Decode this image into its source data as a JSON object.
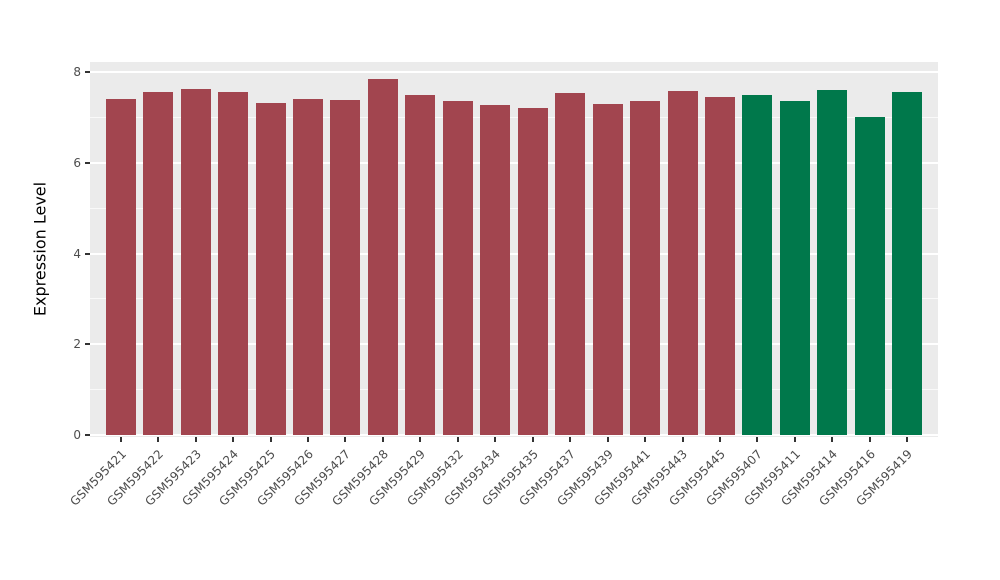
{
  "chart_data": {
    "type": "bar",
    "title": "",
    "xlabel": "",
    "ylabel": "Expression Level",
    "ylim": [
      0,
      8
    ],
    "yticks": [
      0,
      2,
      4,
      6,
      8
    ],
    "yticks_minor": [
      1,
      3,
      5,
      7
    ],
    "grid": true,
    "legend": false,
    "categories": [
      "GSM595421",
      "GSM595422",
      "GSM595423",
      "GSM595424",
      "GSM595425",
      "GSM595426",
      "GSM595427",
      "GSM595428",
      "GSM595429",
      "GSM595432",
      "GSM595434",
      "GSM595435",
      "GSM595437",
      "GSM595439",
      "GSM595441",
      "GSM595443",
      "GSM595445",
      "GSM595407",
      "GSM595411",
      "GSM595414",
      "GSM595416",
      "GSM595419"
    ],
    "values": [
      7.4,
      7.55,
      7.62,
      7.57,
      7.32,
      7.4,
      7.38,
      7.85,
      7.5,
      7.35,
      7.28,
      7.2,
      7.53,
      7.3,
      7.35,
      7.58,
      7.45,
      7.5,
      7.35,
      7.6,
      7.0,
      7.57
    ],
    "bar_colors": [
      "#A2454F",
      "#A2454F",
      "#A2454F",
      "#A2454F",
      "#A2454F",
      "#A2454F",
      "#A2454F",
      "#A2454F",
      "#A2454F",
      "#A2454F",
      "#A2454F",
      "#A2454F",
      "#A2454F",
      "#A2454F",
      "#A2454F",
      "#A2454F",
      "#A2454F",
      "#00784B",
      "#00784B",
      "#00784B",
      "#00784B",
      "#00784B"
    ],
    "colors": {
      "group_red": "#A2454F",
      "group_green": "#00784B",
      "panel_background": "#EBEBEB",
      "grid": "#FFFFFF",
      "tick": "#333333",
      "axis_text": "#4D4D4D"
    }
  }
}
